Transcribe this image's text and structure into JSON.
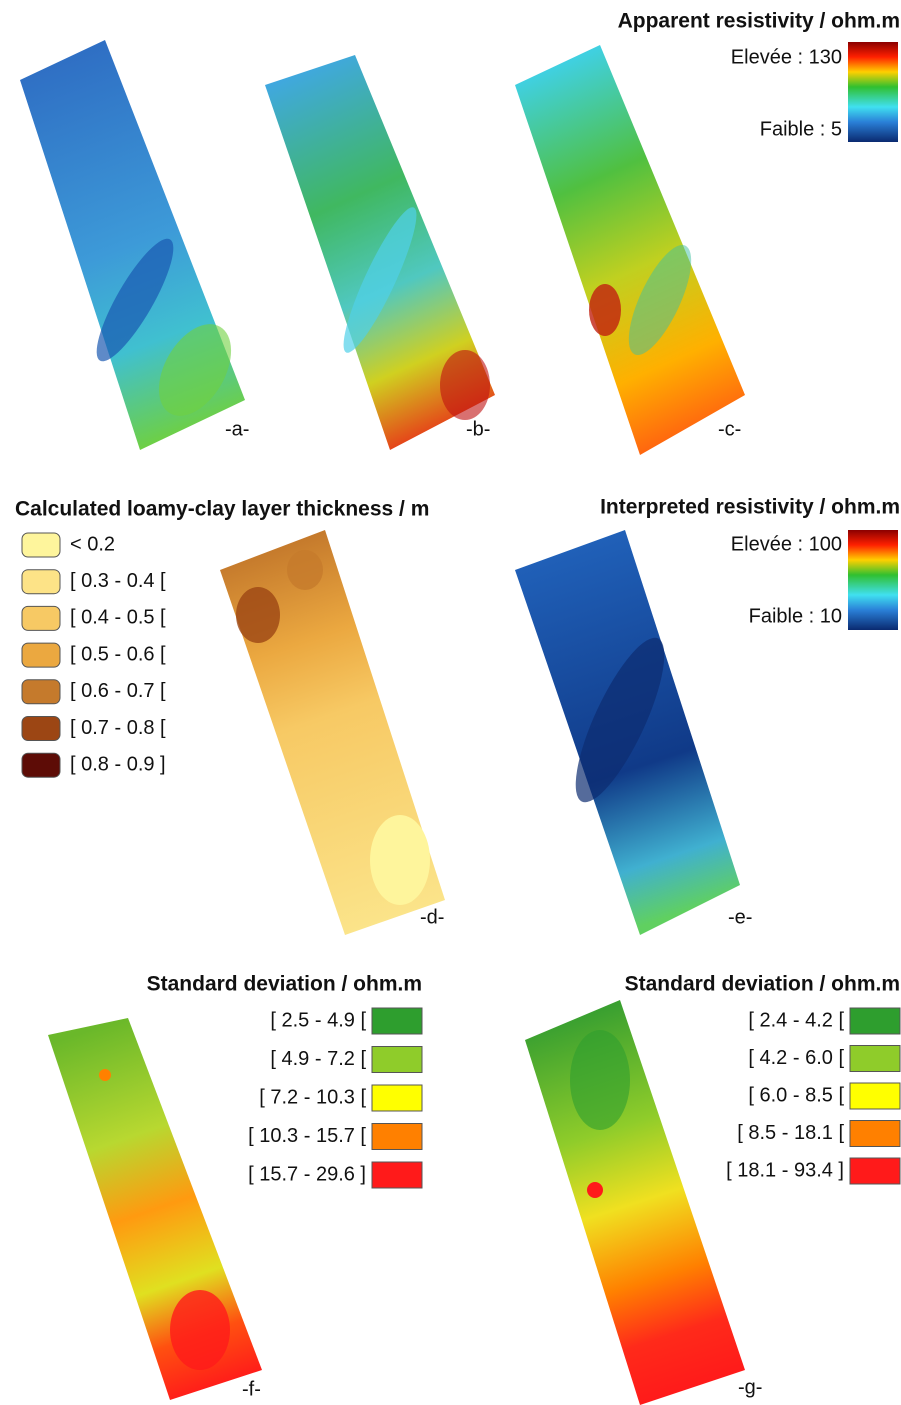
{
  "panels": [
    {
      "label": "-a-"
    },
    {
      "label": "-b-"
    },
    {
      "label": "-c-"
    },
    {
      "label": "-d-"
    },
    {
      "label": "-e-"
    },
    {
      "label": "-f-"
    },
    {
      "label": "-g-"
    }
  ],
  "legends": {
    "apparent": {
      "title": "Apparent resistivity / ohm.m",
      "high": "Elevée : 130",
      "low": "Faible : 5"
    },
    "thickness": {
      "title": "Calculated loamy-clay layer thickness / m",
      "classes": [
        "< 0.2",
        "[ 0.3 - 0.4 [",
        "[ 0.4 - 0.5 [",
        "[ 0.5 - 0.6 [",
        "[ 0.6 - 0.7 [",
        "[ 0.7 - 0.8 [",
        "[ 0.8 - 0.9 ]"
      ],
      "colors": [
        "#fef59c",
        "#fde387",
        "#f7c964",
        "#eba840",
        "#c57a2c",
        "#9c4614",
        "#5d0c06"
      ]
    },
    "interpreted": {
      "title": "Interpreted resistivity / ohm.m",
      "high": "Elevée : 100",
      "low": "Faible : 10"
    },
    "std_f": {
      "title": "Standard deviation / ohm.m",
      "classes": [
        "[ 2.5 - 4.9 [",
        "[ 4.9 - 7.2 [",
        "[ 7.2 - 10.3 [",
        "[ 10.3 - 15.7 [",
        "[ 15.7 - 29.6 ]"
      ],
      "colors": [
        "#2e9e2e",
        "#8fcc2a",
        "#ffff00",
        "#ff8000",
        "#ff1a1a"
      ]
    },
    "std_g": {
      "title": "Standard deviation / ohm.m",
      "classes": [
        "[ 2.4 - 4.2 [",
        "[ 4.2 - 6.0 [",
        "[ 6.0 - 8.5 [",
        "[ 8.5 - 18.1 [",
        "[ 18.1 - 93.4 ]"
      ],
      "colors": [
        "#2e9e2e",
        "#8fcc2a",
        "#ffff00",
        "#ff8000",
        "#ff1a1a"
      ]
    }
  }
}
